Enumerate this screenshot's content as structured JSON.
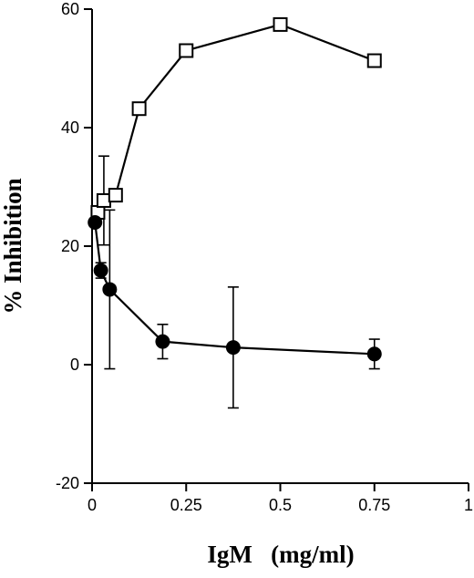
{
  "chart_data": {
    "type": "scatter",
    "xlabel": "IgM   (mg/ml)",
    "ylabel": "% Inhibition",
    "xlim": [
      0,
      1
    ],
    "ylim": [
      -20,
      60
    ],
    "x_ticks": [
      0,
      0.25,
      0.5,
      0.75,
      1
    ],
    "x_tick_labels": [
      "0",
      "0.25",
      "0.5",
      "0.75",
      "1"
    ],
    "y_ticks": [
      -20,
      0,
      20,
      40,
      60
    ],
    "y_tick_labels": [
      "-20",
      "0",
      "20",
      "40",
      "60"
    ],
    "grid": false,
    "series": [
      {
        "marker": "open-square",
        "line": true,
        "color": "#000000",
        "x": [
          0.0156,
          0.0313,
          0.0625,
          0.125,
          0.25,
          0.5,
          0.75
        ],
        "y": [
          25.7,
          27.7,
          28.6,
          43.2,
          53.0,
          57.4,
          51.3
        ],
        "err": [
          null,
          7.5,
          null,
          null,
          null,
          null,
          null
        ]
      },
      {
        "marker": "filled-circle",
        "line": true,
        "color": "#000000",
        "x": [
          0.0078,
          0.0234,
          0.0469,
          0.1875,
          0.375,
          0.75
        ],
        "y": [
          24.0,
          15.9,
          12.7,
          3.9,
          2.9,
          1.8
        ],
        "err": [
          null,
          1.3,
          13.4,
          2.9,
          10.2,
          2.5
        ]
      }
    ]
  }
}
